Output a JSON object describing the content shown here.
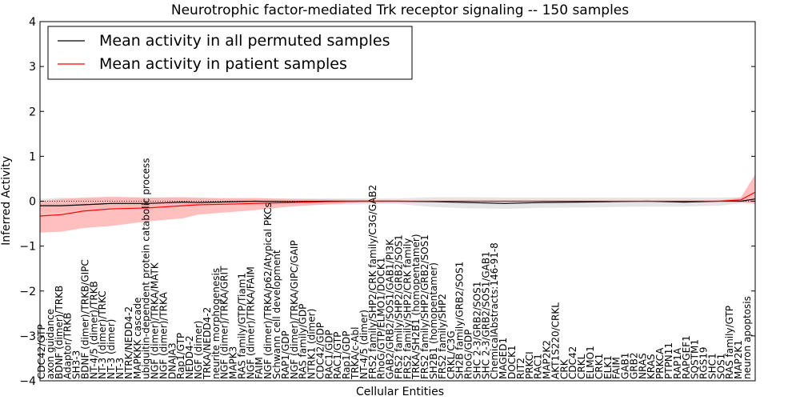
{
  "chart_data": {
    "type": "line",
    "title": "Neurotrophic factor-mediated Trk receptor signaling -- 150 samples",
    "xlabel": "Cellular Entities",
    "ylabel": "Inferred Activity",
    "ylim": [
      -4,
      4
    ],
    "yticks": [
      -4,
      -3,
      -2,
      -1,
      0,
      1,
      2,
      3,
      4
    ],
    "legend_position": "top-left",
    "colors": {
      "permuted": "#000000",
      "patient": "#ff0000",
      "permuted_band": "#d3d3d3",
      "patient_band": "#ffaaaa"
    },
    "entity_labels": [
      "CDC42/GTP",
      "axon guidance",
      "BDNF (dimer)/TRKB",
      "Adaptor/TRKB",
      "SH3-3",
      "BDNF (dimer)/TRKB/GIPC",
      "NT-4/5 (dimer)/TRKB",
      "NT-3 (dimer)/TRKC",
      "NT-3 (dimer)",
      "NT-3",
      "NTRK/NEDD4-2",
      "MAPKKK cascade",
      "ubiquitin-dependent protein catabolic process",
      "NGF (dimer)/TRKA/MATK",
      "NGF (dimer)/TRKA",
      "DNAJA3",
      "Rap1/GTP",
      "NEDD4-2",
      "NGF (dimer)",
      "TRKA/NEDD4-2",
      "neurite morphogenesis",
      "NGF (dimer)/TRKA/GRIT",
      "MAPK3",
      "RAS family/GTP/Tiam1",
      "NGF (dimer)/TRKA/FAIM",
      "FAIM",
      "NGF (dimer)/TRKA/p62/Atypical PKCs",
      "Schwann cell development",
      "RAP1/GDP",
      "NGF (dimer)/TRKA/GIPC/GAIP",
      "RAS family/GDP",
      "NTRK1 (dimer)",
      "CDC42/GDP",
      "RAC1/GDP",
      "RAC1/GTP",
      "Rap1/GDP",
      "TRKA/c-Abl",
      "NT-4/5 (dimer)",
      "FRS2 family/SHP2/CRK family/C3G/GAB2",
      "RhoG/GTP/ELMO1/DOCK1",
      "GAB2/GRB2/SOS1/GAB1/PI3K",
      "FRS2 family/SHP2/GRB2/SOS1",
      "FRS2 family/SHP2/CRK family",
      "TRKA/SH2B1 (homopentamer)",
      "FRS2 family/SHP2/GRB2/SOS1",
      "SH2B1 (homopentamer)",
      "FRS2 family/SHP2",
      "CRKL/C3G",
      "SH2B family/GRB2/SOS1",
      "RhoG/GDP",
      "SHC 2-3/GRB2/SOS1",
      "SHC 2-3/GRB2/SOS1/GAB1",
      "ChemicalAbstracts:146-91-8",
      "MAGED1",
      "DOCK1",
      "RIT2",
      "PRKCI",
      "RAC1",
      "MAP2K2",
      "AKT1S220/CRKL",
      "CRK",
      "CDC42",
      "CRKL",
      "ELMO1",
      "CRK1",
      "ELK1",
      "FAIM",
      "GAB1",
      "GRB2",
      "NRAS",
      "KRAS",
      "PRKCA",
      "PTPN11",
      "RAP1A",
      "RAPGEF1",
      "SQSTM1",
      "RGS19",
      "SHC1",
      "SOS1",
      "RAS family/GTP",
      "MAP2K1",
      "neuron apoptosis"
    ],
    "x_fraction": [
      0,
      0.03,
      0.06,
      0.1,
      0.15,
      0.2,
      0.22,
      0.25,
      0.3,
      0.35,
      0.4,
      0.45,
      0.5,
      0.55,
      0.6,
      0.65,
      0.7,
      0.75,
      0.8,
      0.85,
      0.9,
      0.95,
      0.98,
      1.0
    ],
    "series": [
      {
        "name": "Mean activity in all permuted samples",
        "values": [
          -0.1,
          -0.1,
          -0.08,
          -0.05,
          -0.05,
          -0.02,
          -0.03,
          -0.02,
          0.0,
          -0.01,
          0.0,
          0.0,
          0.0,
          -0.01,
          -0.03,
          -0.05,
          -0.03,
          -0.02,
          -0.01,
          0.0,
          -0.02,
          0.0,
          0.0,
          0.05
        ],
        "lower": [
          -0.23,
          -0.24,
          -0.2,
          -0.18,
          -0.13,
          -0.11,
          -0.1,
          -0.1,
          -0.09,
          -0.09,
          -0.08,
          -0.07,
          -0.06,
          -0.13,
          -0.16,
          -0.17,
          -0.15,
          -0.14,
          -0.13,
          -0.12,
          -0.12,
          -0.1,
          -0.05,
          -0.05
        ],
        "upper": [
          0.05,
          0.08,
          0.06,
          0.07,
          0.08,
          0.08,
          0.07,
          0.06,
          0.07,
          0.06,
          0.06,
          0.06,
          0.06,
          0.09,
          0.09,
          0.08,
          0.08,
          0.08,
          0.08,
          0.08,
          0.08,
          0.08,
          0.09,
          0.15
        ]
      },
      {
        "name": "Mean activity in patient samples",
        "values": [
          -0.33,
          -0.3,
          -0.22,
          -0.17,
          -0.15,
          -0.1,
          -0.08,
          -0.07,
          -0.05,
          -0.03,
          -0.01,
          0.0,
          0.0,
          0.0,
          0.0,
          0.0,
          0.0,
          0.0,
          0.0,
          0.0,
          0.0,
          0.0,
          0.03,
          0.2
        ],
        "lower": [
          -0.7,
          -0.68,
          -0.6,
          -0.55,
          -0.45,
          -0.38,
          -0.3,
          -0.26,
          -0.2,
          -0.12,
          -0.07,
          -0.03,
          -0.02,
          -0.01,
          -0.01,
          -0.01,
          -0.01,
          -0.01,
          -0.01,
          -0.01,
          -0.01,
          -0.01,
          -0.02,
          -0.06
        ],
        "upper": [
          0.0,
          0.05,
          0.08,
          0.1,
          0.08,
          0.09,
          0.08,
          0.07,
          0.07,
          0.05,
          0.04,
          0.03,
          0.02,
          0.01,
          0.01,
          0.01,
          0.01,
          0.01,
          0.01,
          0.01,
          0.01,
          0.02,
          0.08,
          0.6
        ]
      }
    ]
  }
}
